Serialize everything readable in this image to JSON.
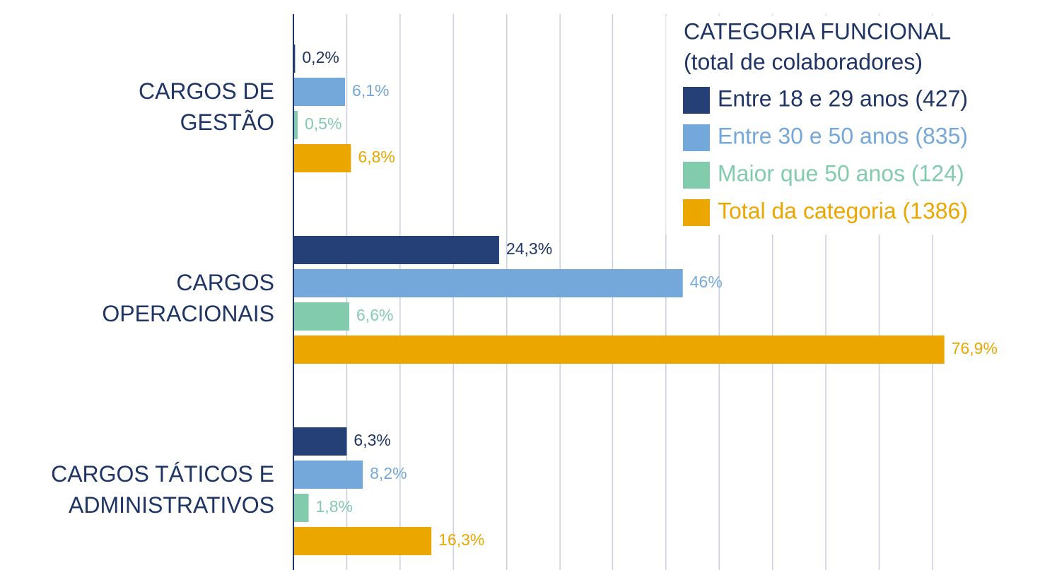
{
  "chart_data": {
    "type": "hbar",
    "categories": [
      [
        "CARGOS DE",
        "GESTÃO"
      ],
      [
        "CARGOS",
        "OPERACIONAIS"
      ],
      [
        "CARGOS TÁTICOS E",
        "ADMINISTRATIVOS"
      ]
    ],
    "series": [
      {
        "name": "Entre 18 e 29 anos (427)",
        "color": "#253f77",
        "values": [
          0.2,
          24.3,
          6.3
        ],
        "value_labels": [
          "0,2%",
          "24,3%",
          "6,3%"
        ]
      },
      {
        "name": "Entre 30 e 50 anos (835)",
        "color": "#74a8da",
        "values": [
          6.1,
          46,
          8.2
        ],
        "value_labels": [
          "6,1%",
          "46%",
          "8,2%"
        ]
      },
      {
        "name": "Maior que 50 anos (124)",
        "color": "#83cbad",
        "values": [
          0.5,
          6.6,
          1.8
        ],
        "value_labels": [
          "0,5%",
          "6,6%",
          "1,8%"
        ]
      },
      {
        "name": "Total da categoria (1386)",
        "color": "#eca600",
        "values": [
          6.8,
          76.9,
          16.3
        ],
        "value_labels": [
          "6,8%",
          "76,9%",
          "16,3%"
        ]
      }
    ],
    "legend_title": [
      "CATEGORIA FUNCIONAL",
      "(total de colaboradores)"
    ],
    "xlim": [
      0,
      88.2
    ],
    "xticks": [
      0,
      6.3,
      12.6,
      18.9,
      25.2,
      31.5,
      37.7,
      44,
      50.3,
      56.6,
      62.9,
      69.2,
      75.5
    ],
    "grid": true,
    "legend": "top-right"
  }
}
